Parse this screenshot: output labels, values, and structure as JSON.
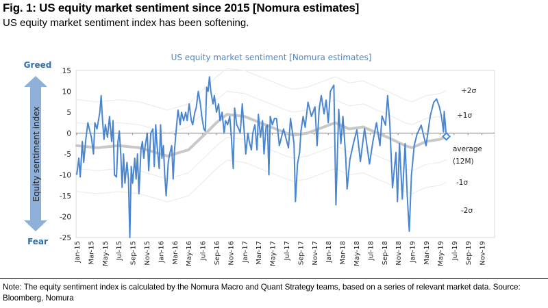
{
  "header": {
    "title": "Fig. 1: US equity market sentiment since 2015 [Nomura estimates]",
    "subtitle": "US equity market sentiment index has been softening."
  },
  "footer": {
    "note": "Note: The equity sentiment index is calculated by the Nomura Macro and Quant Strategy teams, based on a series of relevant market data. Source: Bloomberg, Nomura"
  },
  "colors": {
    "series": "#4a86d0",
    "average": "#c8c8c8",
    "band": "#ececec",
    "title": "#4f86c6",
    "arrow": "#8fb0d8"
  },
  "chart_data": {
    "type": "line",
    "title": "US equity market sentiment [Nomura estimates]",
    "ylabel": "Equity sentiment index",
    "y_top_label": "Greed",
    "y_bottom_label": "Fear",
    "ylim": [
      -25,
      15
    ],
    "yticks": [
      15,
      10,
      5,
      0,
      -5,
      -10,
      -15,
      -20,
      -25
    ],
    "x_unit": "months since Jan-15",
    "xlim": [
      0,
      59
    ],
    "xtick_labels": [
      "Jan-15",
      "Mar-15",
      "May-15",
      "Jul-15",
      "Sep-15",
      "Nov-15",
      "Jan-16",
      "Mar-16",
      "May-16",
      "Jul-16",
      "Sep-16",
      "Nov-16",
      "Jan-17",
      "Mar-17",
      "May-17",
      "Jul-17",
      "Sep-17",
      "Nov-17",
      "Jan-18",
      "Mar-18",
      "May-18",
      "Jul-18",
      "Sep-18",
      "Nov-18",
      "Jan-19",
      "Mar-19",
      "May-19",
      "Jul-19",
      "Sep-19",
      "Nov-19"
    ],
    "grid": false,
    "annotations": {
      "plus2": "+2σ",
      "plus1": "+1σ",
      "avg1": "average",
      "avg2": "(12M)",
      "minus1": "-1σ",
      "minus2": "-2σ"
    },
    "sigma_approx": 5.5,
    "series": [
      {
        "name": "Sentiment index",
        "points": [
          [
            0,
            -10
          ],
          [
            0.3,
            -6
          ],
          [
            0.5,
            -10.5
          ],
          [
            0.8,
            -2
          ],
          [
            1,
            -7
          ],
          [
            1.3,
            -1.5
          ],
          [
            1.6,
            2.5
          ],
          [
            1.8,
            1
          ],
          [
            2.1,
            -1
          ],
          [
            2.4,
            -5
          ],
          [
            2.6,
            2.5
          ],
          [
            2.9,
            1
          ],
          [
            3.3,
            5
          ],
          [
            3.5,
            9
          ],
          [
            3.7,
            3
          ],
          [
            3.9,
            -1.5
          ],
          [
            4.1,
            2
          ],
          [
            4.4,
            -1
          ],
          [
            4.7,
            4
          ],
          [
            5,
            -2
          ],
          [
            5.2,
            3
          ],
          [
            5.4,
            -10
          ],
          [
            5.7,
            -10.5
          ],
          [
            5.9,
            -2
          ],
          [
            6.1,
            0.5
          ],
          [
            6.3,
            -5
          ],
          [
            6.5,
            -13
          ],
          [
            6.7,
            -5
          ],
          [
            6.9,
            -12
          ],
          [
            7.2,
            -7
          ],
          [
            7.4,
            -11
          ],
          [
            7.6,
            -25
          ],
          [
            7.8,
            -8
          ],
          [
            8,
            -12
          ],
          [
            8.3,
            -6
          ],
          [
            8.5,
            -11
          ],
          [
            8.7,
            -5
          ],
          [
            8.9,
            -14.5
          ],
          [
            9.2,
            -4
          ],
          [
            9.4,
            -2
          ],
          [
            9.6,
            -6
          ],
          [
            9.8,
            -3
          ],
          [
            10.1,
            0
          ],
          [
            10.3,
            -9
          ],
          [
            10.6,
            0
          ],
          [
            10.9,
            1
          ],
          [
            11.1,
            -8
          ],
          [
            11.3,
            2
          ],
          [
            11.5,
            -3
          ],
          [
            11.8,
            -8.5
          ],
          [
            12,
            2
          ],
          [
            12.2,
            -6
          ],
          [
            12.4,
            -3
          ],
          [
            12.6,
            -10
          ],
          [
            12.8,
            -15
          ],
          [
            13.1,
            -7
          ],
          [
            13.3,
            -5
          ],
          [
            13.6,
            -3
          ],
          [
            13.8,
            -11
          ],
          [
            14,
            -4
          ],
          [
            14.3,
            2
          ],
          [
            14.5,
            5.5
          ],
          [
            14.8,
            2
          ],
          [
            15,
            5
          ],
          [
            15.3,
            3
          ],
          [
            15.6,
            5
          ],
          [
            15.8,
            3
          ],
          [
            16.1,
            7
          ],
          [
            16.4,
            3
          ],
          [
            16.6,
            2
          ],
          [
            16.9,
            5
          ],
          [
            17.1,
            6
          ],
          [
            17.4,
            10
          ],
          [
            17.7,
            7
          ],
          [
            17.9,
            4
          ],
          [
            18.2,
            1
          ],
          [
            18.4,
            0.5
          ],
          [
            18.6,
            11
          ],
          [
            18.8,
            10
          ],
          [
            19,
            13.5
          ],
          [
            19.2,
            10
          ],
          [
            19.5,
            7
          ],
          [
            19.7,
            9
          ],
          [
            20,
            5
          ],
          [
            20.3,
            7
          ],
          [
            20.5,
            3
          ],
          [
            20.8,
            5
          ],
          [
            21.1,
            0
          ],
          [
            21.3,
            3
          ],
          [
            21.6,
            2
          ],
          [
            21.9,
            4
          ],
          [
            22.1,
            0
          ],
          [
            22.4,
            -8.5
          ],
          [
            22.6,
            6
          ],
          [
            22.9,
            2
          ],
          [
            23.2,
            1
          ],
          [
            23.4,
            0
          ],
          [
            23.7,
            7
          ],
          [
            23.9,
            2
          ],
          [
            24.2,
            -5
          ],
          [
            24.5,
            0
          ],
          [
            24.7,
            -2
          ],
          [
            25,
            -4
          ],
          [
            25.2,
            0
          ],
          [
            25.5,
            2
          ],
          [
            25.8,
            -4
          ],
          [
            26,
            4.5
          ],
          [
            26.3,
            -1
          ],
          [
            26.6,
            3
          ],
          [
            26.8,
            -5
          ],
          [
            27.1,
            1.5
          ],
          [
            27.3,
            2
          ],
          [
            27.5,
            -10
          ],
          [
            27.7,
            4
          ],
          [
            28,
            2
          ],
          [
            28.3,
            3.5
          ],
          [
            28.6,
            3.5
          ],
          [
            29,
            -3
          ],
          [
            29.6,
            1
          ],
          [
            30.3,
            -3.5
          ],
          [
            30.6,
            3.5
          ],
          [
            31.1,
            -2.5
          ],
          [
            31.3,
            -16.4
          ],
          [
            31.6,
            -7.4
          ],
          [
            31.9,
            -4.6
          ],
          [
            32.1,
            0.5
          ],
          [
            32.4,
            4
          ],
          [
            32.7,
            1.4
          ],
          [
            33.1,
            7.4
          ],
          [
            33.6,
            4
          ],
          [
            34.1,
            6.3
          ],
          [
            34.4,
            -3
          ],
          [
            34.7,
            5.7
          ],
          [
            35,
            9
          ],
          [
            35.4,
            4.6
          ],
          [
            35.7,
            7.9
          ],
          [
            36,
            2.5
          ],
          [
            36.3,
            10
          ],
          [
            36.8,
            11.5
          ],
          [
            37.1,
            -17.2
          ],
          [
            37.5,
            5.7
          ],
          [
            37.8,
            -2.5
          ],
          [
            38.1,
            4
          ],
          [
            38.5,
            -5.7
          ],
          [
            38.7,
            -13.4
          ],
          [
            39.1,
            -6.3
          ],
          [
            39.6,
            -2.5
          ],
          [
            40.1,
            0.8
          ],
          [
            40.6,
            -6.8
          ],
          [
            41.2,
            1.1
          ],
          [
            41.9,
            -7.4
          ],
          [
            42.4,
            -1.9
          ],
          [
            42.9,
            2.5
          ],
          [
            43.4,
            -3
          ],
          [
            43.7,
            4.1
          ],
          [
            44.2,
            1.9
          ],
          [
            44.5,
            9
          ],
          [
            44.8,
            2.5
          ],
          [
            45.2,
            -13.1
          ],
          [
            45.7,
            -4.6
          ],
          [
            45.9,
            -16.4
          ],
          [
            46.2,
            -2.5
          ],
          [
            46.6,
            -15.8
          ],
          [
            47,
            -2.5
          ],
          [
            47.3,
            -15
          ],
          [
            47.6,
            -23.5
          ],
          [
            47.9,
            -10.1
          ],
          [
            48.3,
            -3
          ],
          [
            48.7,
            -0.3
          ],
          [
            49.3,
            1.9
          ],
          [
            50,
            -3
          ],
          [
            50.6,
            4.1
          ],
          [
            51.1,
            7.4
          ],
          [
            51.5,
            8.2
          ],
          [
            51.9,
            6.3
          ],
          [
            52.2,
            4.1
          ],
          [
            52.5,
            0.3
          ],
          [
            52.6,
            5.2
          ],
          [
            52.9,
            -0.8
          ]
        ]
      },
      {
        "name": "average (12M)",
        "points": [
          [
            0,
            -3
          ],
          [
            3,
            -3.5
          ],
          [
            6,
            -3
          ],
          [
            9,
            -3.5
          ],
          [
            13,
            -5.5
          ],
          [
            16,
            -4
          ],
          [
            18.5,
            0
          ],
          [
            20,
            2.5
          ],
          [
            21.5,
            4.5
          ],
          [
            24,
            4
          ],
          [
            27,
            2
          ],
          [
            30,
            0
          ],
          [
            31,
            -0.5
          ],
          [
            33,
            0
          ],
          [
            37,
            2.5
          ],
          [
            39,
            1
          ],
          [
            41,
            1.5
          ],
          [
            43,
            0
          ],
          [
            44.5,
            -1
          ],
          [
            47,
            -3
          ],
          [
            48,
            -3.5
          ],
          [
            50,
            -2
          ],
          [
            52,
            -1.5
          ],
          [
            52.9,
            -0.8
          ]
        ]
      }
    ]
  }
}
